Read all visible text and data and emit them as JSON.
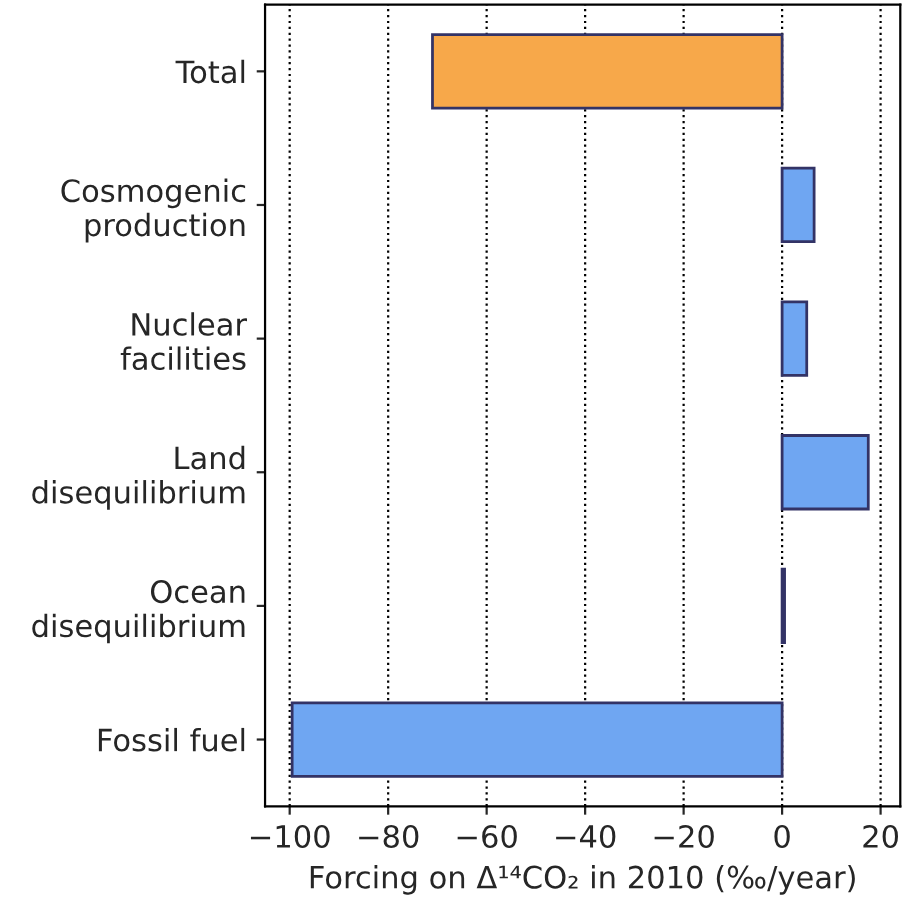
{
  "chart_data": {
    "type": "bar",
    "orientation": "horizontal",
    "categories": [
      "Total",
      "Cosmogenic\nproduction",
      "Nuclear\nfacilities",
      "Land\ndisequilibrium",
      "Ocean\ndisequilibrium",
      "Fossil fuel"
    ],
    "values": [
      -71,
      6.5,
      5,
      17.5,
      0.5,
      -99.5
    ],
    "colors": [
      "#f7a84a",
      "#6fa6f2",
      "#6fa6f2",
      "#6fa6f2",
      "#6fa6f2",
      "#6fa6f2"
    ],
    "xlabel": "Forcing on Δ¹⁴CO₂ in 2010 (‰/year)",
    "xlim": [
      -105,
      24
    ],
    "xticks": [
      {
        "value": -100,
        "label": "−100"
      },
      {
        "value": -80,
        "label": "−80"
      },
      {
        "value": -60,
        "label": "−60"
      },
      {
        "value": -40,
        "label": "−40"
      },
      {
        "value": -20,
        "label": "−20"
      },
      0,
      20
    ],
    "grid": "x"
  }
}
